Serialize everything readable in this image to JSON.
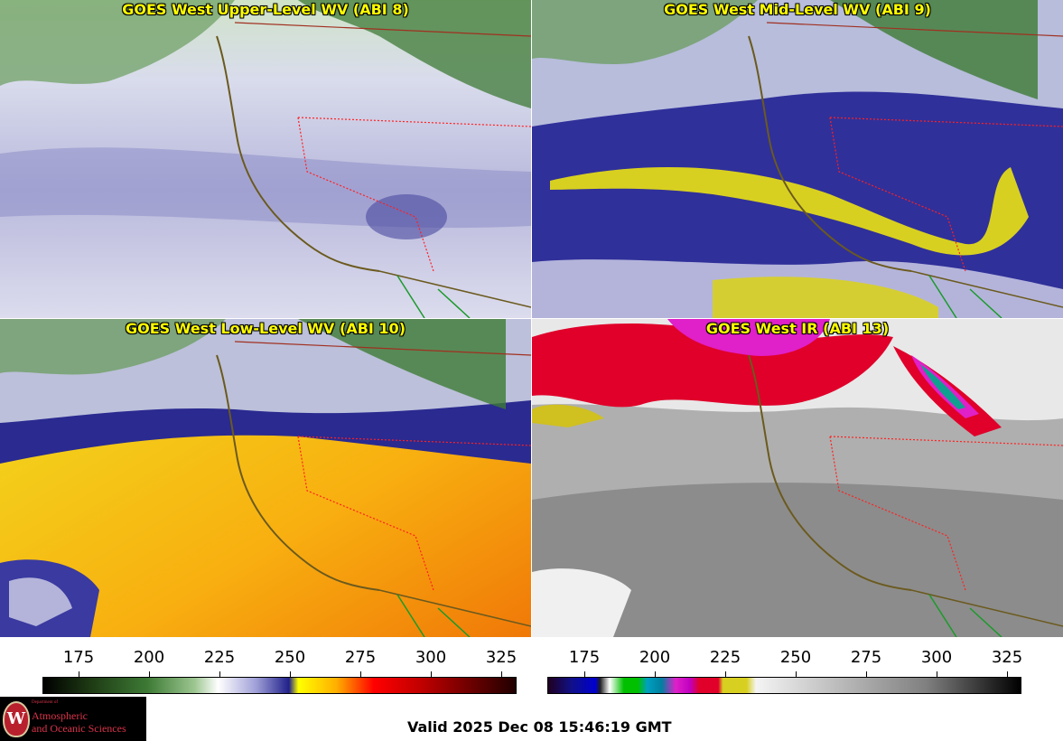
{
  "panels": [
    {
      "title": "GOES West Upper-Level WV (ABI 8)"
    },
    {
      "title": "GOES West Mid-Level WV (ABI 9)"
    },
    {
      "title": "GOES West Low-Level WV (ABI 10)"
    },
    {
      "title": "GOES West IR (ABI 13)"
    }
  ],
  "colorbars": {
    "wv": {
      "ticks": [
        "175",
        "200",
        "225",
        "250",
        "275",
        "300",
        "325"
      ]
    },
    "ir": {
      "ticks": [
        "175",
        "200",
        "225",
        "250",
        "275",
        "300",
        "325"
      ]
    }
  },
  "logo": {
    "dept": "Department of",
    "line1": "Atmospheric",
    "line2": "and Oceanic Sciences",
    "seal_letter": "W"
  },
  "valid_time": "Valid 2025 Dec 08 15:46:19 GMT",
  "colors": {
    "coast": "#6b5a1e",
    "state_border": "#ff2020",
    "mexico_border": "#1a9a2a",
    "title_text": "#ffff00"
  }
}
